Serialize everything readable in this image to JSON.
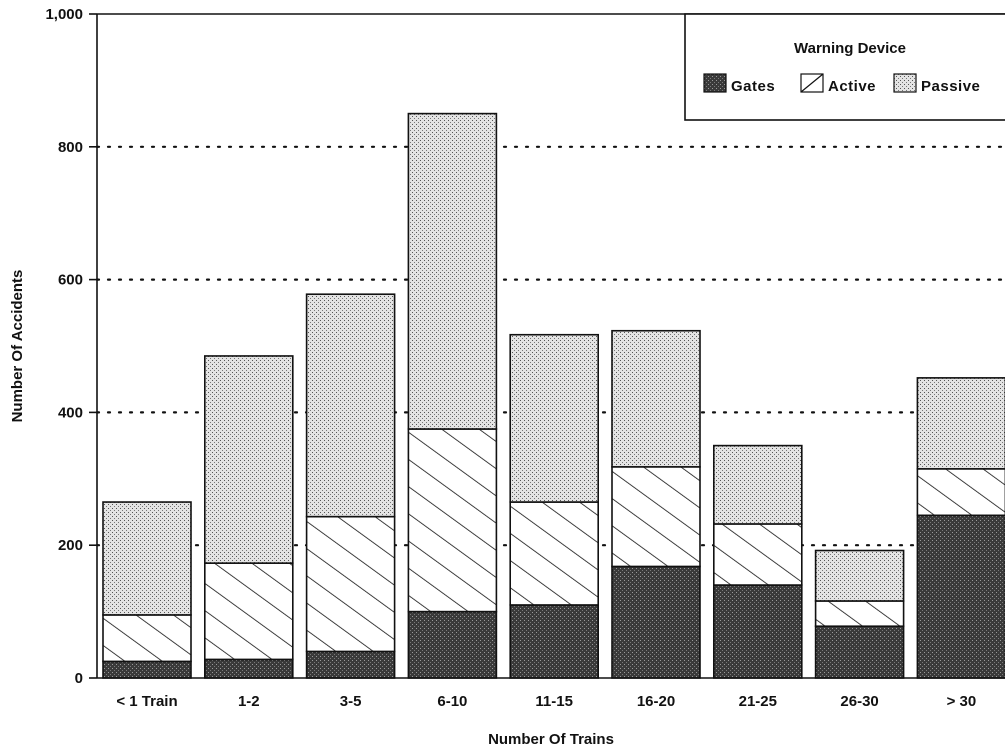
{
  "chart_data": {
    "type": "bar",
    "stacked": true,
    "title": "",
    "xlabel": "Number Of Trains",
    "ylabel": "Number Of Accidents",
    "ylim": [
      0,
      1000
    ],
    "yticks": [
      0,
      200,
      400,
      600,
      800,
      1000
    ],
    "ytick_labels": [
      "0",
      "200",
      "400",
      "600",
      "800",
      "1,000"
    ],
    "grid": "dotted horizontal at 200, 400, 600, 800",
    "categories": [
      "< 1 Train",
      "1-2",
      "3-5",
      "6-10",
      "11-15",
      "16-20",
      "21-25",
      "26-30",
      "> 30"
    ],
    "series": [
      {
        "name": "Gates",
        "pattern": "dark-dots",
        "values": [
          25,
          28,
          40,
          100,
          110,
          168,
          140,
          78,
          245
        ]
      },
      {
        "name": "Active",
        "pattern": "hatch",
        "values": [
          70,
          145,
          203,
          275,
          155,
          150,
          92,
          38,
          70
        ]
      },
      {
        "name": "Passive",
        "pattern": "light-dots",
        "values": [
          170,
          312,
          335,
          475,
          252,
          205,
          118,
          76,
          137
        ]
      }
    ],
    "legend": {
      "title": "Warning Device",
      "position": "top-right"
    },
    "colors": {
      "gates": "#2b2b2b",
      "passive": "#c9c9c9",
      "outline": "#111111"
    }
  }
}
